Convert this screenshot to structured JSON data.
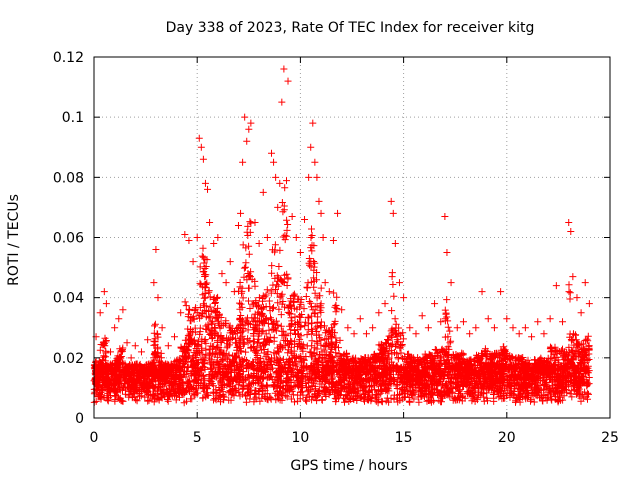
{
  "chart_data": {
    "type": "scatter",
    "title": "Day 338 of 2023, Rate Of TEC Index for receiver kitg",
    "xlabel": "GPS time / hours",
    "ylabel": "ROTI / TECUs",
    "xlim": [
      0,
      25
    ],
    "ylim": [
      0,
      0.12
    ],
    "xticks": [
      0,
      5,
      10,
      15,
      20,
      25
    ],
    "yticks": [
      0,
      0.02,
      0.04,
      0.06,
      0.08,
      0.1,
      0.12
    ],
    "xtick_labels": [
      "0",
      "5",
      "10",
      "15",
      "20",
      "25"
    ],
    "ytick_labels": [
      "0",
      "0.02",
      "0.04",
      "0.06",
      "0.08",
      "0.1",
      "0.12"
    ],
    "grid": true,
    "marker": "+",
    "color": "#ff0000",
    "series": [
      {
        "name": "ROTI",
        "x": [
          0.1,
          0.3,
          0.5,
          0.6,
          0.8,
          1.0,
          1.2,
          1.4,
          1.6,
          1.8,
          2.0,
          2.3,
          2.6,
          2.9,
          3.0,
          3.1,
          3.3,
          3.6,
          3.9,
          4.2,
          4.4,
          4.6,
          4.8,
          5.0,
          5.1,
          5.2,
          5.3,
          5.4,
          5.5,
          5.6,
          5.8,
          6.0,
          6.2,
          6.4,
          6.6,
          6.8,
          7.0,
          7.1,
          7.2,
          7.3,
          7.4,
          7.5,
          7.6,
          7.8,
          8.0,
          8.2,
          8.4,
          8.6,
          8.7,
          8.8,
          8.9,
          9.0,
          9.1,
          9.2,
          9.4,
          9.6,
          9.8,
          10.0,
          10.2,
          10.4,
          10.5,
          10.6,
          10.7,
          10.8,
          10.9,
          11.0,
          11.1,
          11.2,
          11.4,
          11.6,
          11.8,
          12.0,
          12.3,
          12.6,
          12.9,
          13.2,
          13.5,
          13.8,
          14.1,
          14.4,
          14.5,
          14.6,
          14.8,
          15.0,
          15.3,
          15.6,
          15.9,
          16.2,
          16.5,
          16.8,
          17.0,
          17.1,
          17.3,
          17.6,
          17.9,
          18.2,
          18.5,
          18.8,
          19.1,
          19.4,
          19.7,
          20.0,
          20.3,
          20.6,
          20.9,
          21.2,
          21.5,
          21.8,
          22.1,
          22.4,
          22.7,
          23.0,
          23.1,
          23.2,
          23.4,
          23.6,
          23.8,
          24.0
        ],
        "y": [
          0.027,
          0.035,
          0.042,
          0.038,
          0.022,
          0.03,
          0.033,
          0.036,
          0.025,
          0.02,
          0.024,
          0.022,
          0.026,
          0.045,
          0.056,
          0.04,
          0.03,
          0.024,
          0.027,
          0.035,
          0.061,
          0.059,
          0.052,
          0.06,
          0.093,
          0.09,
          0.086,
          0.078,
          0.076,
          0.065,
          0.058,
          0.06,
          0.048,
          0.045,
          0.052,
          0.042,
          0.064,
          0.068,
          0.085,
          0.1,
          0.092,
          0.096,
          0.098,
          0.065,
          0.058,
          0.075,
          0.06,
          0.088,
          0.085,
          0.08,
          0.07,
          0.078,
          0.105,
          0.116,
          0.112,
          0.067,
          0.06,
          0.055,
          0.066,
          0.08,
          0.09,
          0.098,
          0.085,
          0.08,
          0.072,
          0.068,
          0.06,
          0.045,
          0.042,
          0.059,
          0.068,
          0.036,
          0.03,
          0.028,
          0.033,
          0.028,
          0.03,
          0.035,
          0.038,
          0.072,
          0.068,
          0.058,
          0.045,
          0.04,
          0.03,
          0.028,
          0.034,
          0.03,
          0.038,
          0.032,
          0.067,
          0.055,
          0.045,
          0.03,
          0.032,
          0.028,
          0.03,
          0.042,
          0.033,
          0.03,
          0.042,
          0.033,
          0.03,
          0.028,
          0.03,
          0.027,
          0.032,
          0.028,
          0.033,
          0.044,
          0.032,
          0.065,
          0.062,
          0.047,
          0.04,
          0.035,
          0.045,
          0.038
        ]
      }
    ]
  }
}
